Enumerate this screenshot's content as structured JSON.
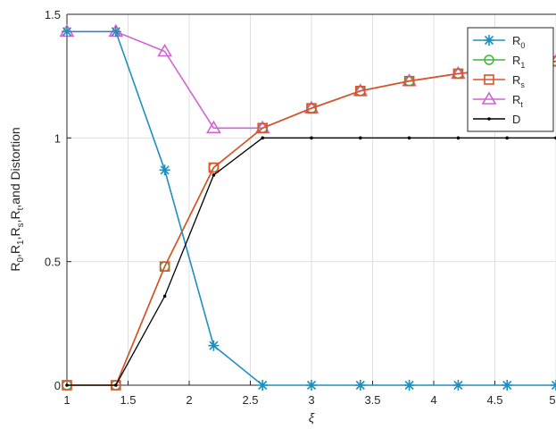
{
  "chart_data": {
    "type": "line",
    "xlabel": "ξ",
    "ylabel": "R_0,R_1,R_s,R_t,and Distortion",
    "xlim": [
      1,
      5
    ],
    "ylim": [
      0,
      1.5
    ],
    "x_ticks": [
      "1",
      "1.5",
      "2",
      "2.5",
      "3",
      "3.5",
      "4",
      "4.5",
      "5"
    ],
    "y_ticks": [
      "0",
      "0.5",
      "1",
      "1.5"
    ],
    "grid": true,
    "legend_position": "top-right",
    "series": [
      {
        "name": "R_0",
        "label_main": "R",
        "label_sub": "0",
        "color": "#1f8fbf",
        "marker": "star",
        "x": [
          1,
          1.4,
          1.8,
          2.2,
          2.6,
          3,
          3.4,
          3.8,
          4.2,
          4.6,
          5
        ],
        "values": [
          1.43,
          1.43,
          0.87,
          0.16,
          0,
          0,
          0,
          0,
          0,
          0,
          0
        ]
      },
      {
        "name": "R_1",
        "label_main": "R",
        "label_sub": "1",
        "color": "#3cb83c",
        "marker": "circle",
        "x": [
          1,
          1.4,
          1.8,
          2.2,
          2.6,
          3,
          3.4,
          3.8,
          4.2,
          4.6,
          5
        ],
        "values": [
          0,
          0,
          0.48,
          0.88,
          1.04,
          1.12,
          1.19,
          1.23,
          1.26,
          1.28,
          1.31
        ]
      },
      {
        "name": "R_s",
        "label_main": "R",
        "label_sub": "s",
        "color": "#e0502a",
        "marker": "square",
        "x": [
          1,
          1.4,
          1.8,
          2.2,
          2.6,
          3,
          3.4,
          3.8,
          4.2,
          4.6,
          5
        ],
        "values": [
          0,
          0,
          0.48,
          0.88,
          1.04,
          1.12,
          1.19,
          1.23,
          1.26,
          1.28,
          1.31
        ]
      },
      {
        "name": "R_t",
        "label_main": "R",
        "label_sub": "t",
        "color": "#d262d2",
        "marker": "triangle",
        "x": [
          1,
          1.4,
          1.8,
          2.2,
          2.6,
          3,
          3.4,
          3.8,
          4.2,
          4.6,
          5
        ],
        "values": [
          1.43,
          1.43,
          1.35,
          1.04,
          1.04,
          1.12,
          1.19,
          1.23,
          1.26,
          1.28,
          1.31
        ]
      },
      {
        "name": "D",
        "label_main": "D",
        "label_sub": "",
        "color": "#000000",
        "marker": "dot",
        "x": [
          1,
          1.4,
          1.8,
          2.2,
          2.6,
          3,
          3.4,
          3.8,
          4.2,
          4.6,
          5
        ],
        "values": [
          0,
          0,
          0.36,
          0.85,
          1,
          1,
          1,
          1,
          1,
          1,
          1
        ]
      }
    ]
  }
}
